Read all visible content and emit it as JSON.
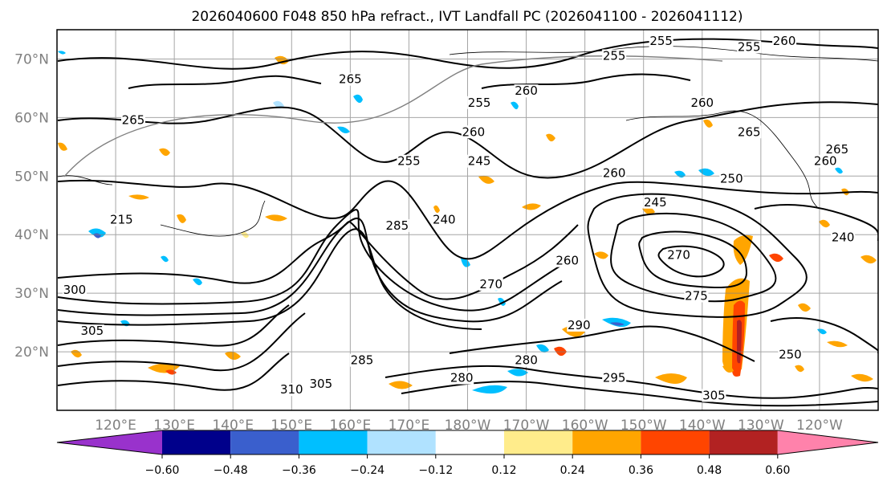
{
  "title": "2026040600 F048 850 hPa refract., IVT Landfall PC (2026041100 - 2026041112)",
  "map": {
    "lat_labels": [
      "70°N",
      "60°N",
      "50°N",
      "40°N",
      "30°N",
      "20°N"
    ],
    "lat_values": [
      70,
      60,
      50,
      40,
      30,
      20
    ],
    "lon_labels": [
      "120°E",
      "130°E",
      "140°E",
      "150°E",
      "160°E",
      "170°E",
      "180°W",
      "170°W",
      "160°W",
      "150°W",
      "140°W",
      "130°W",
      "120°W"
    ],
    "lat_range": [
      10,
      75
    ],
    "lon_range_east": [
      110,
      250
    ],
    "grid": true,
    "contour_color": "#000000",
    "contour_labels": [
      {
        "text": "255",
        "lon": 213,
        "lat": 72.5
      },
      {
        "text": "255",
        "lon": 228,
        "lat": 71.5
      },
      {
        "text": "260",
        "lon": 234,
        "lat": 72.5
      },
      {
        "text": "255",
        "lon": 205,
        "lat": 70
      },
      {
        "text": "265",
        "lon": 160,
        "lat": 66
      },
      {
        "text": "260",
        "lon": 190,
        "lat": 64
      },
      {
        "text": "260",
        "lon": 220,
        "lat": 62
      },
      {
        "text": "265",
        "lon": 123,
        "lat": 59
      },
      {
        "text": "255",
        "lon": 182,
        "lat": 62
      },
      {
        "text": "260",
        "lon": 181,
        "lat": 57
      },
      {
        "text": "265",
        "lon": 228,
        "lat": 57
      },
      {
        "text": "265",
        "lon": 243,
        "lat": 54
      },
      {
        "text": "260",
        "lon": 241,
        "lat": 52
      },
      {
        "text": "250",
        "lon": 225,
        "lat": 49
      },
      {
        "text": "260",
        "lon": 205,
        "lat": 50
      },
      {
        "text": "245",
        "lon": 182,
        "lat": 52
      },
      {
        "text": "245",
        "lon": 212,
        "lat": 45
      },
      {
        "text": "255",
        "lon": 170,
        "lat": 52
      },
      {
        "text": "240",
        "lon": 176,
        "lat": 42
      },
      {
        "text": "285",
        "lon": 168,
        "lat": 41
      },
      {
        "text": "215",
        "lon": 121,
        "lat": 42
      },
      {
        "text": "270",
        "lon": 216,
        "lat": 36
      },
      {
        "text": "260",
        "lon": 197,
        "lat": 35
      },
      {
        "text": "270",
        "lon": 184,
        "lat": 31
      },
      {
        "text": "240",
        "lon": 244,
        "lat": 39
      },
      {
        "text": "275",
        "lon": 219,
        "lat": 29
      },
      {
        "text": "280",
        "lon": 190,
        "lat": 18
      },
      {
        "text": "290",
        "lon": 199,
        "lat": 24
      },
      {
        "text": "295",
        "lon": 205,
        "lat": 15
      },
      {
        "text": "285",
        "lon": 162,
        "lat": 18
      },
      {
        "text": "250",
        "lon": 235,
        "lat": 19
      },
      {
        "text": "305",
        "lon": 222,
        "lat": 12
      },
      {
        "text": "310",
        "lon": 150,
        "lat": 13
      },
      {
        "text": "305",
        "lon": 155,
        "lat": 14
      },
      {
        "text": "280",
        "lon": 179,
        "lat": 15
      },
      {
        "text": "300",
        "lon": 113,
        "lat": 30
      },
      {
        "text": "305",
        "lon": 116,
        "lat": 23
      }
    ]
  },
  "colorbar": {
    "tick_labels": [
      "−0.60",
      "−0.48",
      "−0.36",
      "−0.24",
      "−0.12",
      "0.12",
      "0.24",
      "0.36",
      "0.48",
      "0.60"
    ],
    "tick_values": [
      -0.6,
      -0.48,
      -0.36,
      -0.24,
      -0.12,
      0.12,
      0.24,
      0.36,
      0.48,
      0.6
    ],
    "colors": [
      "#9932cc",
      "#00008b",
      "#3a5fcd",
      "#00bfff",
      "#b0e2ff",
      "#ffffff",
      "#ffec8b",
      "#ffa500",
      "#ff4500",
      "#b22222",
      "#ff82ab"
    ],
    "extend": "both"
  }
}
